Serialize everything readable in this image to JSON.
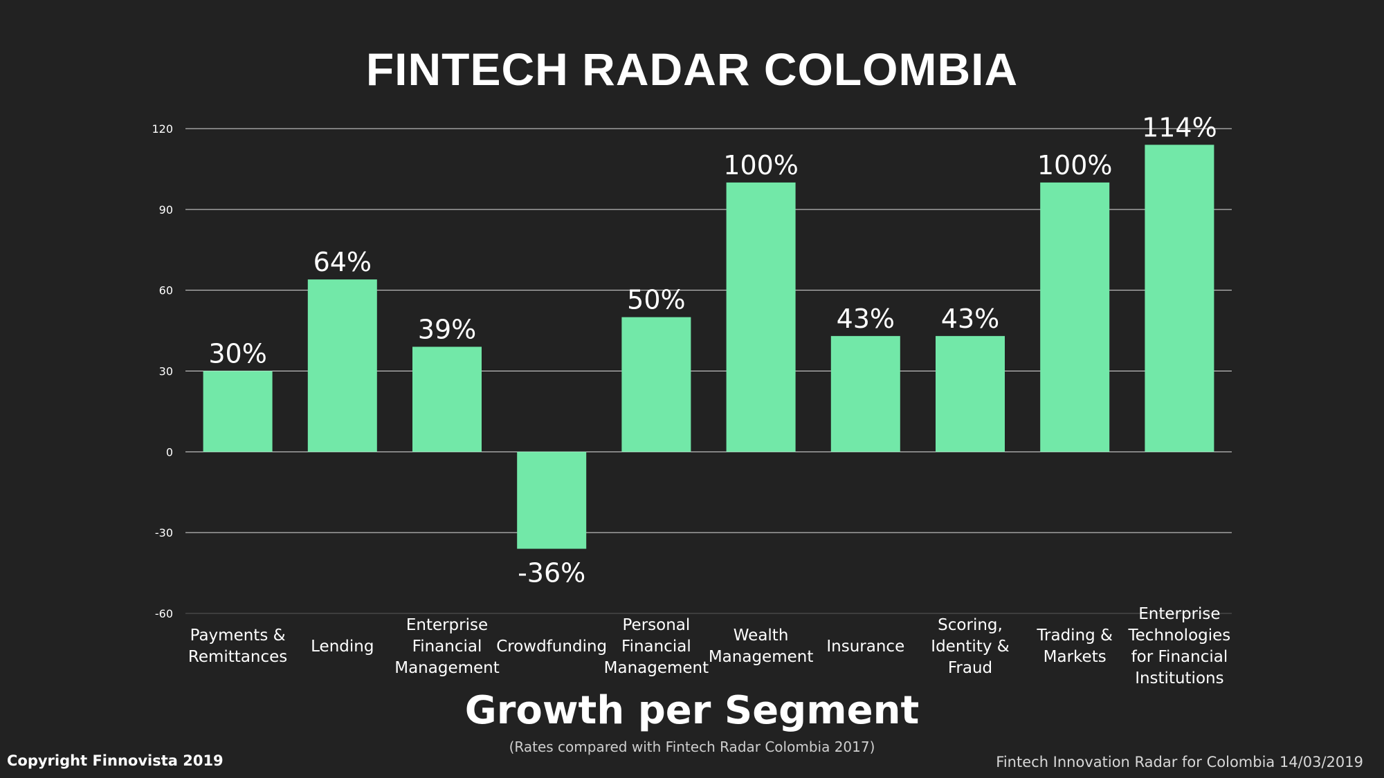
{
  "title": "FINTECH RADAR COLOMBIA",
  "subtitle": "Growth per Segment",
  "note": "(Rates compared with Fintech Radar Colombia 2017)",
  "copyright": "Copyright Finnovista 2019",
  "footer_right": "Fintech Innovation Radar for  Colombia 14/03/2019",
  "colors": {
    "bar": "#72e8a8",
    "background": "#222222",
    "grid": "#ffffff"
  },
  "chart_data": {
    "type": "bar",
    "categories": [
      [
        "Payments &",
        "Remittances"
      ],
      [
        "Lending"
      ],
      [
        "Enterprise",
        "Financial",
        "Management"
      ],
      [
        "Crowdfunding"
      ],
      [
        "Personal",
        "Financial",
        "Management"
      ],
      [
        "Wealth",
        "Management"
      ],
      [
        "Insurance"
      ],
      [
        "Scoring,",
        "Identity &",
        "Fraud"
      ],
      [
        "Trading &",
        "Markets"
      ],
      [
        "Enterprise",
        "Technologies",
        "for Financial",
        "Institutions"
      ]
    ],
    "values": [
      30,
      64,
      39,
      -36,
      50,
      100,
      43,
      43,
      100,
      114
    ],
    "value_labels": [
      "30%",
      "64%",
      "39%",
      "-36%",
      "50%",
      "100%",
      "43%",
      "43%",
      "100%",
      "114%"
    ],
    "ylim": [
      -60,
      120
    ],
    "yticks": [
      -60,
      -30,
      0,
      30,
      60,
      90,
      120
    ],
    "grid": true
  }
}
